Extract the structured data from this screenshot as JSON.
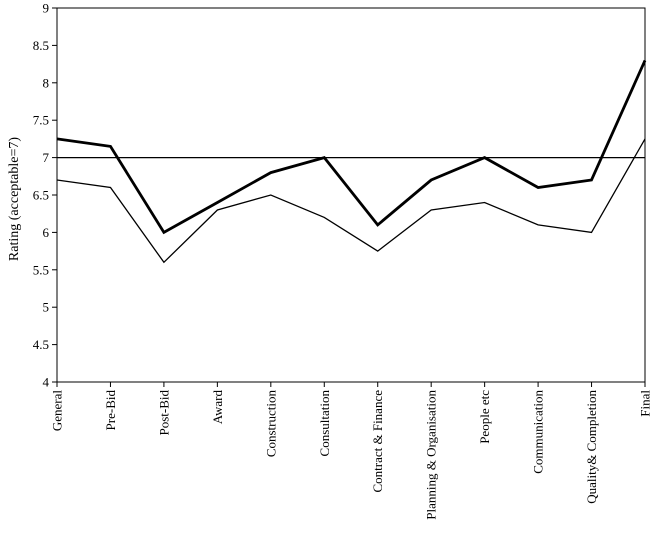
{
  "chart_data": {
    "type": "line",
    "title": "",
    "xlabel": "",
    "ylabel": "Rating (acceptable=7)",
    "ylim": [
      4,
      9
    ],
    "yticks": [
      "4",
      "4.5",
      "5",
      "5.5",
      "6",
      "6.5",
      "7",
      "7.5",
      "8",
      "8.5",
      "9"
    ],
    "categories": [
      "General",
      "Pre-Bid",
      "Post-Bid",
      "Award",
      "Construction",
      "Consultation",
      "Contract & Finance",
      "Planning & Organisation",
      "People etc",
      "Communication",
      "Quality& Completion",
      "Final"
    ],
    "reference_line": 7,
    "grid": false,
    "legend": "none",
    "series": [
      {
        "values": [
          7.25,
          7.15,
          6.0,
          6.4,
          6.8,
          7.0,
          6.1,
          6.7,
          7.0,
          6.6,
          6.7,
          8.3
        ],
        "style": "thick",
        "color": "#000000"
      },
      {
        "values": [
          6.7,
          6.6,
          5.6,
          6.3,
          6.5,
          6.2,
          5.75,
          6.3,
          6.4,
          6.1,
          6.0,
          7.25
        ],
        "style": "thin",
        "color": "#000000"
      }
    ]
  }
}
